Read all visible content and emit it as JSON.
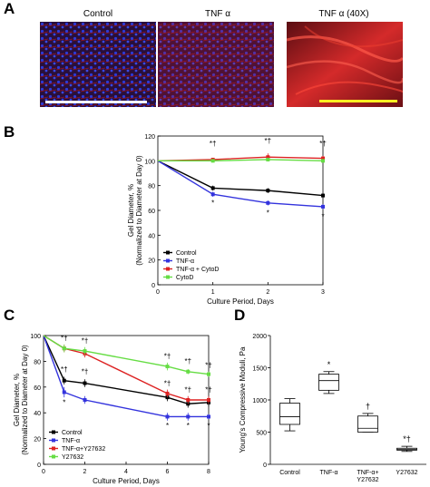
{
  "panels": {
    "A": {
      "letter": "A",
      "images": [
        {
          "label": "Control"
        },
        {
          "label": "TNF α"
        },
        {
          "label": "TNF α (40X)"
        }
      ]
    },
    "B": {
      "letter": "B"
    },
    "C": {
      "letter": "C"
    },
    "D": {
      "letter": "D"
    }
  },
  "colors": {
    "control": "#000000",
    "tnf": "#3333dd",
    "third": "#dd2222",
    "fourth": "#66dd44",
    "scale_white": "#ffffff",
    "scale_yellow": "#ffee22"
  },
  "chart_data": [
    {
      "id": "B",
      "type": "line",
      "xlabel": "Culture Period, Days",
      "ylabel": "Gel Diameter, %\n(Normalized to Diameter at Day 0)",
      "xlim": [
        0,
        3
      ],
      "ylim": [
        0,
        120
      ],
      "xticks": [
        0,
        1,
        2,
        3
      ],
      "yticks": [
        0,
        20,
        40,
        60,
        80,
        100,
        120
      ],
      "legend_position": "bottom-left",
      "series": [
        {
          "name": "Control",
          "color": "#000000",
          "x": [
            0,
            1,
            2,
            3
          ],
          "y": [
            100,
            78,
            76,
            72
          ],
          "err": [
            0,
            2,
            2,
            2
          ]
        },
        {
          "name": "TNF-α",
          "color": "#3333dd",
          "x": [
            0,
            1,
            2,
            3
          ],
          "y": [
            100,
            73,
            66,
            63
          ],
          "err": [
            0,
            2,
            2,
            2
          ]
        },
        {
          "name": "TNF-α + CytoD",
          "color": "#dd2222",
          "x": [
            0,
            1,
            2,
            3
          ],
          "y": [
            100,
            101,
            103,
            102
          ],
          "err": [
            0,
            1,
            3,
            2
          ]
        },
        {
          "name": "CytoD",
          "color": "#66dd44",
          "x": [
            0,
            1,
            2,
            3
          ],
          "y": [
            100,
            100,
            101,
            100
          ],
          "err": [
            0,
            1,
            1,
            1
          ]
        }
      ],
      "annotations": [
        {
          "x": 1,
          "y": 112,
          "text": "*†"
        },
        {
          "x": 2,
          "y": 114,
          "text": "*†"
        },
        {
          "x": 3,
          "y": 112,
          "text": "*†"
        },
        {
          "x": 1,
          "y": 64,
          "text": "*"
        },
        {
          "x": 2,
          "y": 56,
          "text": "*"
        },
        {
          "x": 3,
          "y": 53,
          "text": "*"
        }
      ]
    },
    {
      "id": "C",
      "type": "line",
      "xlabel": "Culture Period, Days",
      "ylabel": "Gel Diameter, %\n(Normalized to Diameter at Day 0)",
      "xlim": [
        0,
        8
      ],
      "ylim": [
        0,
        100
      ],
      "xticks": [
        0,
        2,
        4,
        6,
        8
      ],
      "yticks": [
        0,
        20,
        40,
        60,
        80,
        100
      ],
      "legend_position": "bottom-left",
      "series": [
        {
          "name": "Control",
          "color": "#000000",
          "x": [
            0,
            1,
            2,
            6,
            7,
            8
          ],
          "y": [
            100,
            65,
            63,
            52,
            47,
            48
          ],
          "err": [
            0,
            3,
            3,
            3,
            3,
            3
          ]
        },
        {
          "name": "TNF-α",
          "color": "#3333dd",
          "x": [
            0,
            1,
            2,
            6,
            7,
            8
          ],
          "y": [
            100,
            56,
            50,
            37,
            37,
            37
          ],
          "err": [
            0,
            4,
            3,
            3,
            3,
            2
          ]
        },
        {
          "name": "TNF-α+Y27632",
          "color": "#dd2222",
          "x": [
            0,
            1,
            2,
            6,
            7,
            8
          ],
          "y": [
            100,
            90,
            86,
            55,
            50,
            50
          ],
          "err": [
            0,
            3,
            3,
            3,
            3,
            3
          ]
        },
        {
          "name": "Y27632",
          "color": "#66dd44",
          "x": [
            0,
            1,
            2,
            6,
            7,
            8
          ],
          "y": [
            100,
            90,
            88,
            76,
            72,
            70
          ],
          "err": [
            0,
            3,
            3,
            3,
            2,
            2
          ]
        }
      ],
      "annotations": [
        {
          "x": 1,
          "y": 96,
          "text": "*†"
        },
        {
          "x": 2,
          "y": 94,
          "text": "*†"
        },
        {
          "x": 1,
          "y": 72,
          "text": "*†"
        },
        {
          "x": 2,
          "y": 70,
          "text": "*†"
        },
        {
          "x": 6,
          "y": 82,
          "text": "*†"
        },
        {
          "x": 7,
          "y": 78,
          "text": "*†"
        },
        {
          "x": 8,
          "y": 75,
          "text": "*†"
        },
        {
          "x": 6,
          "y": 61,
          "text": "*†"
        },
        {
          "x": 7,
          "y": 56,
          "text": "*†"
        },
        {
          "x": 8,
          "y": 56,
          "text": "*†"
        },
        {
          "x": 1,
          "y": 46,
          "text": "*"
        },
        {
          "x": 6,
          "y": 28,
          "text": "*"
        },
        {
          "x": 7,
          "y": 28,
          "text": "*"
        },
        {
          "x": 8,
          "y": 28,
          "text": "*"
        }
      ]
    },
    {
      "id": "D",
      "type": "box",
      "ylabel": "Young's Compressive Moduli, Pa",
      "ylim": [
        0,
        2000
      ],
      "yticks": [
        0,
        500,
        1000,
        1500,
        2000
      ],
      "categories": [
        "Control",
        "TNF-α",
        "TNF-α+\nY27632",
        "Y27632"
      ],
      "boxes": [
        {
          "min": 520,
          "q1": 620,
          "median": 740,
          "q3": 950,
          "max": 1020,
          "annotation": ""
        },
        {
          "min": 1100,
          "q1": 1150,
          "median": 1300,
          "q3": 1400,
          "max": 1440,
          "annotation": "*"
        },
        {
          "min": 500,
          "q1": 500,
          "median": 560,
          "q3": 750,
          "max": 790,
          "annotation": "†"
        },
        {
          "min": 200,
          "q1": 220,
          "median": 230,
          "q3": 250,
          "max": 280,
          "annotation": "*†"
        }
      ]
    }
  ]
}
